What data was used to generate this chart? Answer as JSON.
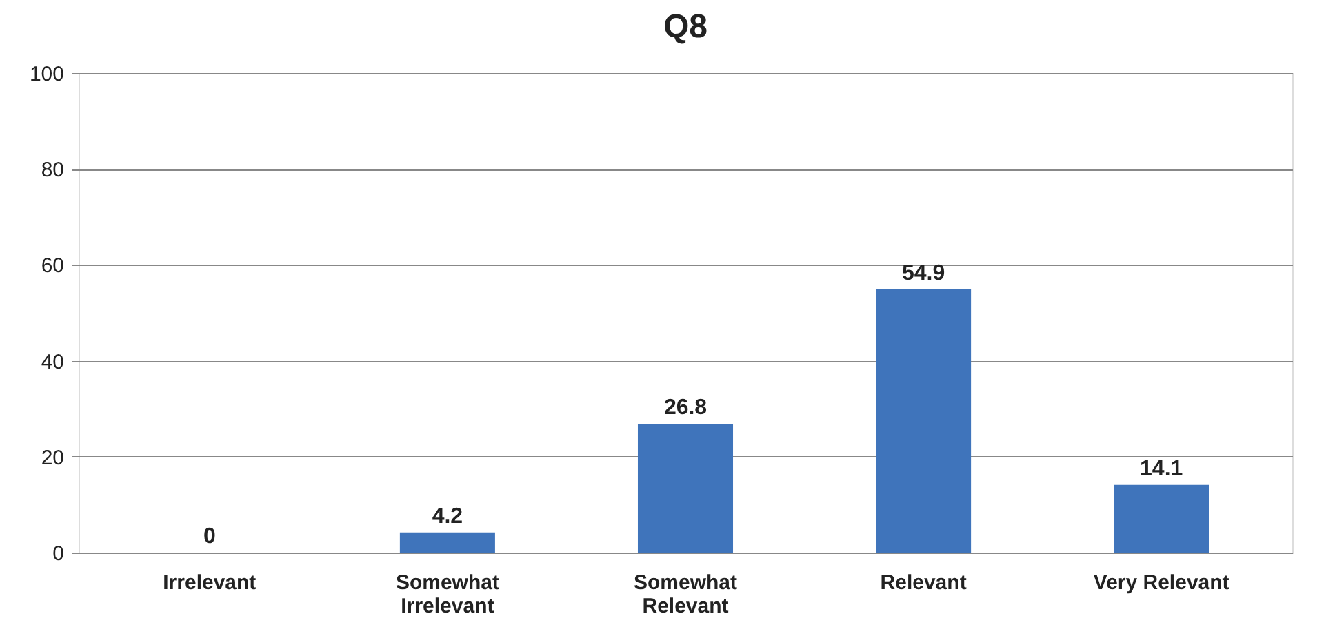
{
  "chart_data": {
    "type": "bar",
    "title": "Q8",
    "categories": [
      "Irrelevant",
      "Somewhat Irrelevant",
      "Somewhat Relevant",
      "Relevant",
      "Very Relevant"
    ],
    "values": [
      0,
      4.2,
      26.8,
      54.9,
      14.1
    ],
    "color": "#3f74bb",
    "ylim": [
      0,
      100
    ],
    "yticks": [
      0,
      20,
      40,
      60,
      80,
      100
    ],
    "grid": "y",
    "data_labels": true
  }
}
